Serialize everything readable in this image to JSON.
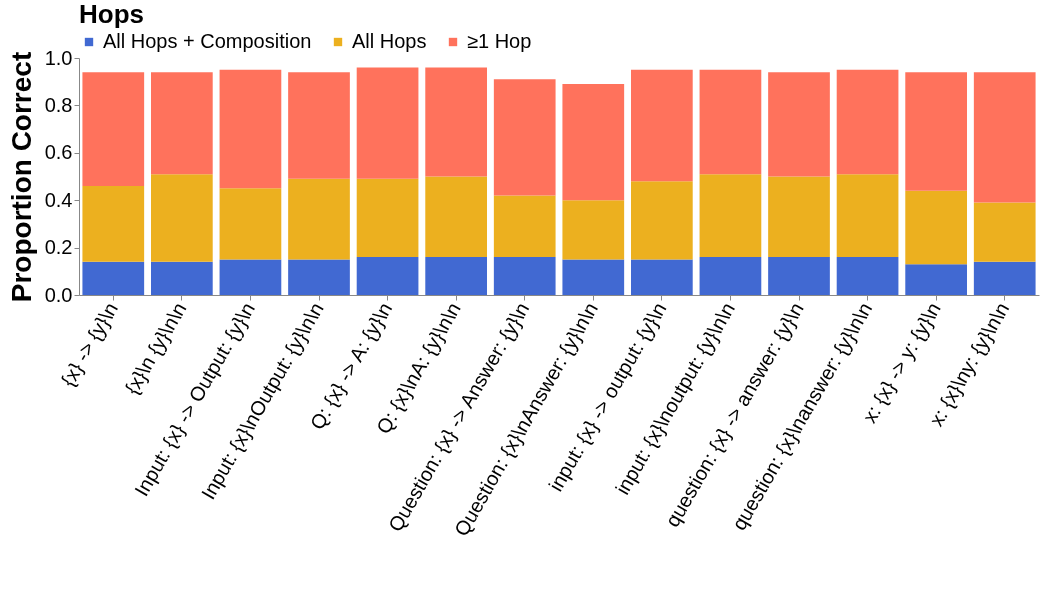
{
  "chart_data": {
    "type": "bar",
    "stacked": true,
    "legend_title": "Hops",
    "legend": "top left",
    "ylabel": "Proportion Correct",
    "grid": false,
    "categories": [
      "{x} -> {y}\\n",
      "{x}\\n {y}\\n\\n",
      "Input: {x} -> Output: {y}\\n",
      "Input: {x}\\nOutput: {y}\\n\\n",
      "Q: {x} -> A: {y}\\n",
      "Q: {x}\\nA: {y}\\n\\n",
      "Question: {x} -> Answer: {y}\\n",
      "Question: {x}\\nAnswer: {y}\\n\\n",
      "input: {x} -> output: {y}\\n",
      "input: {x}\\noutput: {y}\\n\\n",
      "question: {x} -> answer: {y}\\n",
      "question: {x}\\nanswer: {y}\\n\\n",
      "x: {x} -> y: {y}\\n",
      "x: {x}\\ny: {y}\\n\\n"
    ],
    "ylim": [
      0,
      1
    ],
    "yticks": [
      {
        "value": 0,
        "label": "0.0"
      },
      {
        "value": 0.2,
        "label": "0.2"
      },
      {
        "value": 0.4,
        "label": "0.4"
      },
      {
        "value": 0.6,
        "label": "0.6"
      },
      {
        "value": 0.8,
        "label": "0.8"
      },
      {
        "value": 1,
        "label": "1.0"
      }
    ],
    "series": [
      {
        "name": "All Hops + Composition",
        "color": "#4169d2",
        "values": [
          0.14,
          0.14,
          0.15,
          0.15,
          0.16,
          0.16,
          0.16,
          0.15,
          0.15,
          0.16,
          0.16,
          0.16,
          0.13,
          0.14
        ]
      },
      {
        "name": "All Hops",
        "color": "#ecb01f",
        "values": [
          0.32,
          0.37,
          0.3,
          0.34,
          0.33,
          0.34,
          0.26,
          0.25,
          0.33,
          0.35,
          0.34,
          0.35,
          0.31,
          0.25
        ]
      },
      {
        "name": "≥1 Hop",
        "color": "#ff725c",
        "values": [
          0.48,
          0.43,
          0.5,
          0.45,
          0.47,
          0.46,
          0.49,
          0.49,
          0.47,
          0.44,
          0.44,
          0.44,
          0.5,
          0.55
        ]
      }
    ]
  }
}
